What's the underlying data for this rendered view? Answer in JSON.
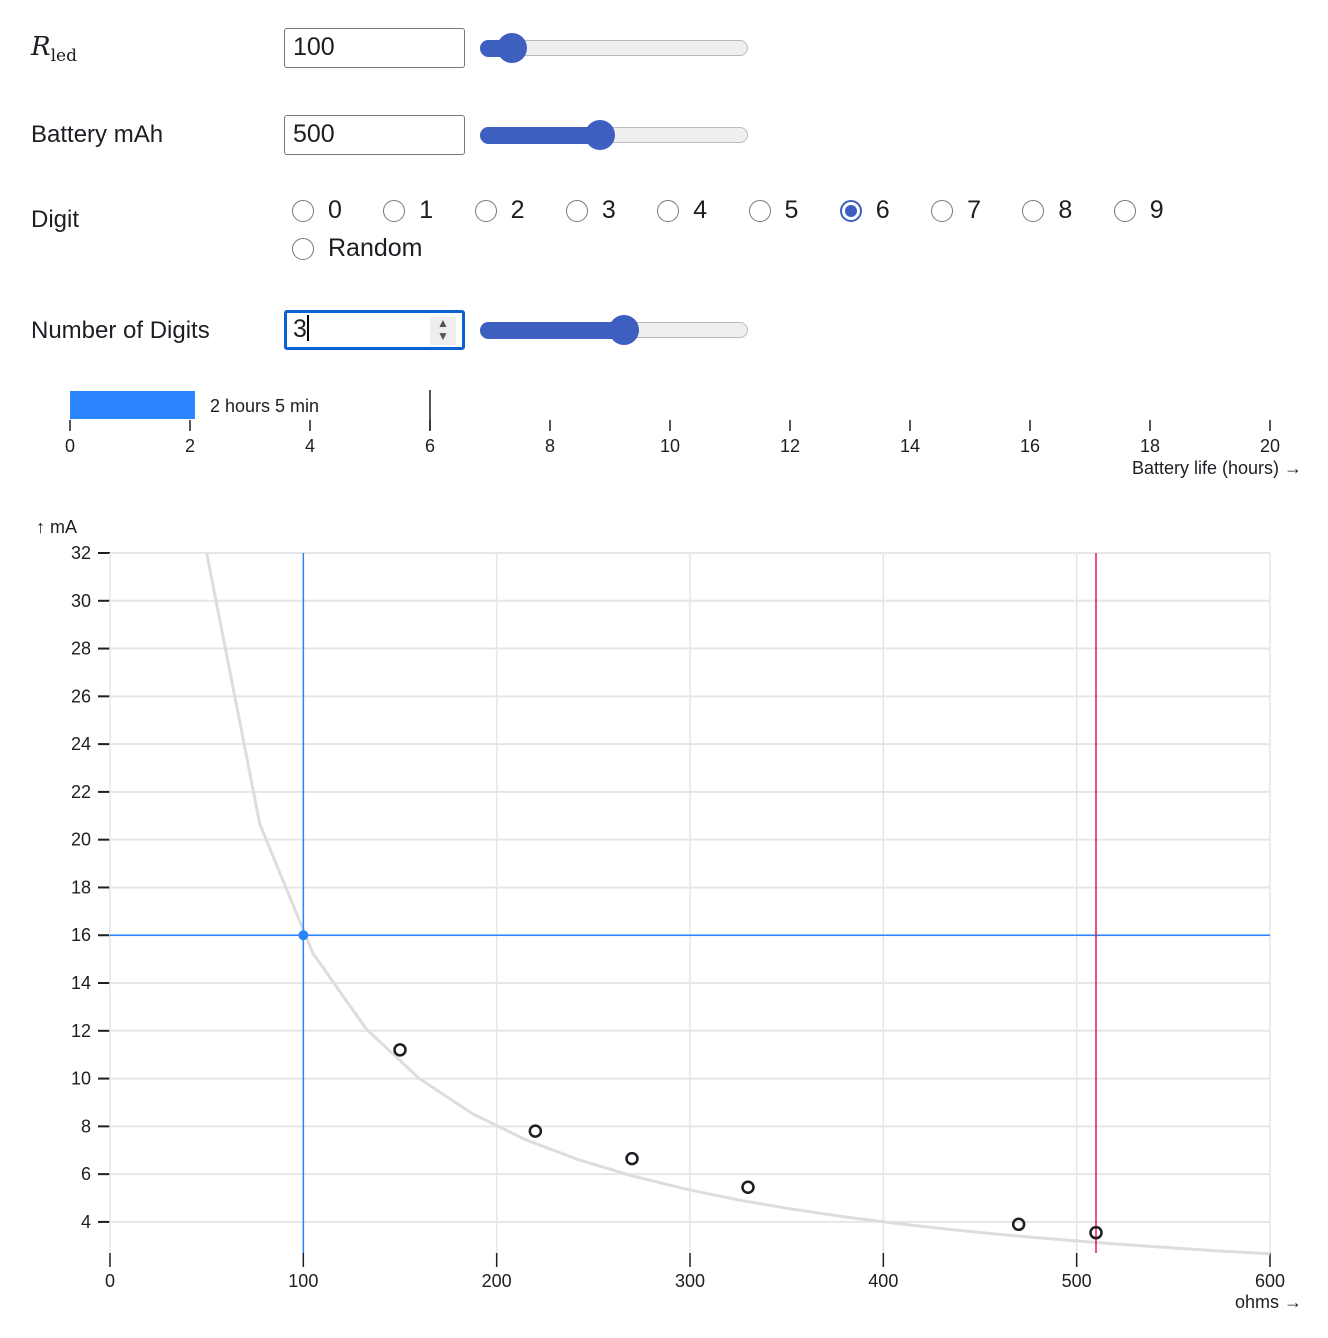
{
  "controls": {
    "rled": {
      "label_main": "R",
      "label_sub": "led",
      "value": "100",
      "slider_fraction": 0.07
    },
    "battery": {
      "label": "Battery mAh",
      "value": "500",
      "slider_fraction": 0.44
    },
    "digit": {
      "label": "Digit",
      "options": [
        "0",
        "1",
        "2",
        "3",
        "4",
        "5",
        "6",
        "7",
        "8",
        "9",
        "Random"
      ],
      "selected": "6"
    },
    "num_digits": {
      "label": "Number of Digits",
      "value": "3",
      "slider_fraction": 0.54
    }
  },
  "colors": {
    "accent": "#3d5fbf",
    "bar": "#2a85ff",
    "crosshair": "#2a85ff",
    "marker_line": "#e8174b",
    "curve": "#dddddd"
  },
  "chart_data": [
    {
      "type": "bar",
      "orientation": "horizontal",
      "value": 2.083,
      "data_label": "2 hours 5 min",
      "rule_x": 6,
      "xlabel": "Battery life (hours) →",
      "xlim": [
        0,
        20
      ],
      "xticks": [
        "0",
        "2",
        "4",
        "6",
        "8",
        "10",
        "12",
        "14",
        "16",
        "18",
        "20"
      ]
    },
    {
      "type": "line",
      "xlabel": "ohms →",
      "ylabel": "↑ mA",
      "xlim": [
        0,
        600
      ],
      "ylim": [
        2.7,
        32
      ],
      "grid": true,
      "xticks": [
        "0",
        "100",
        "200",
        "300",
        "400",
        "500",
        "600"
      ],
      "yticks": [
        "4",
        "6",
        "8",
        "10",
        "12",
        "14",
        "16",
        "18",
        "20",
        "22",
        "24",
        "26",
        "28",
        "30",
        "32"
      ],
      "curve": {
        "x": [
          50,
          77.5,
          105,
          132.5,
          160,
          187.5,
          215,
          242.5,
          270,
          297.5,
          325,
          352.5,
          380,
          407.5,
          435,
          462.5,
          490,
          517.5,
          545,
          572.5,
          600
        ],
        "y": [
          32,
          20.65,
          15.24,
          12.08,
          10,
          8.53,
          7.44,
          6.6,
          5.93,
          5.38,
          4.92,
          4.54,
          4.21,
          3.93,
          3.68,
          3.46,
          3.27,
          3.09,
          2.94,
          2.79,
          2.67
        ]
      },
      "crosshair": {
        "x": 100,
        "y": 16
      },
      "points": [
        {
          "x": 150,
          "y": 11.2
        },
        {
          "x": 220,
          "y": 7.8
        },
        {
          "x": 270,
          "y": 6.65
        },
        {
          "x": 330,
          "y": 5.45
        },
        {
          "x": 470,
          "y": 3.9
        },
        {
          "x": 510,
          "y": 3.55
        }
      ],
      "rule_x": 510
    }
  ]
}
